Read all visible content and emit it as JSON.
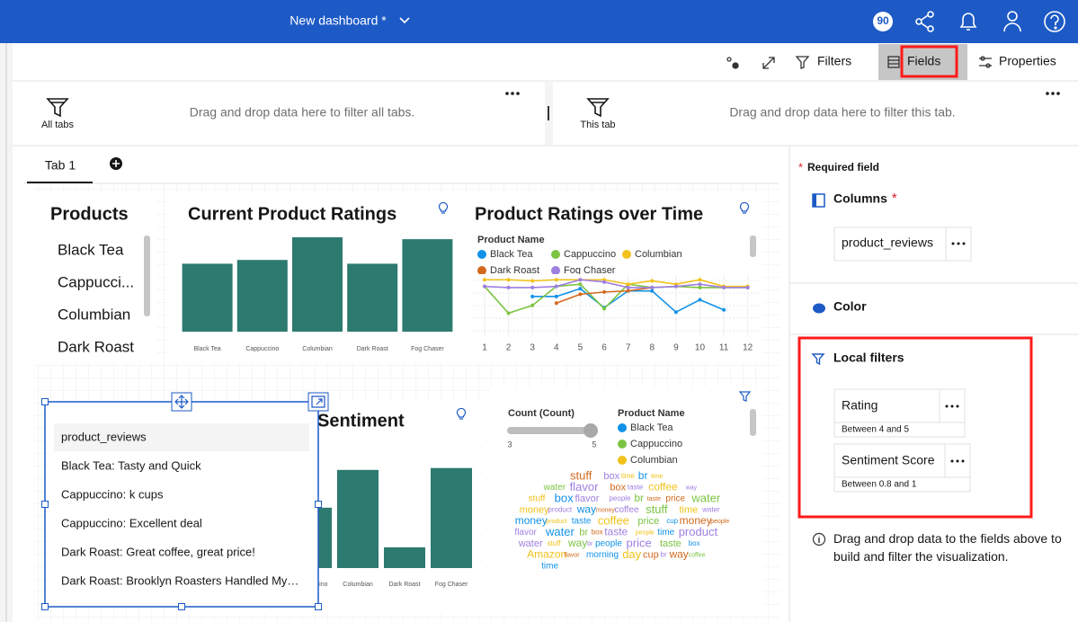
{
  "header": {
    "title": "New dashboard *",
    "badge": "90"
  },
  "toolbar": {
    "filters": "Filters",
    "fields": "Fields",
    "properties": "Properties"
  },
  "filter_bar": {
    "all_tabs": {
      "label": "All tabs",
      "hint": "Drag and drop data here to filter all tabs."
    },
    "this_tab": {
      "label": "This tab",
      "hint": "Drag and drop data here to filter this tab."
    }
  },
  "tabs": [
    "Tab 1"
  ],
  "widgets": {
    "products": {
      "title": "Products",
      "items": [
        "Black Tea",
        "Cappucci...",
        "Columbian",
        "Dark Roast"
      ]
    },
    "ratings": {
      "type": "bar",
      "title": "Current Product Ratings",
      "color": "#2d7a70",
      "categories": [
        "Black Tea",
        "Cappuccino",
        "Columbian",
        "Dark Roast",
        "Fog Chaser"
      ],
      "values": [
        3.6,
        3.8,
        5,
        3.6,
        4.9
      ]
    },
    "ratings_over_time": {
      "type": "line",
      "title": "Product Ratings over Time",
      "legend_title": "Product Name",
      "x": [
        1,
        2,
        3,
        4,
        5,
        6,
        7,
        8,
        9,
        10,
        11,
        12
      ],
      "xlim": [
        0.55,
        12.5
      ],
      "xticks": [
        1,
        2,
        3,
        4,
        5,
        6,
        7,
        8,
        9,
        10,
        11,
        12
      ],
      "series": [
        {
          "name": "Black Tea",
          "color": "#1192e8",
          "values": [
            null,
            null,
            3.4,
            3.4,
            4.1,
            2.4,
            3.9,
            3.9,
            2.0,
            3.1,
            2.2,
            null
          ]
        },
        {
          "name": "Cappuccino",
          "color": "#7cc442",
          "values": [
            4.3,
            1.9,
            2.6,
            4.3,
            4.5,
            2.3,
            4.5,
            4.2,
            4.3,
            4.2,
            4.2,
            4.2
          ]
        },
        {
          "name": "Columbian",
          "color": "#f1c21b",
          "values": [
            4.9,
            4.9,
            4.8,
            4.9,
            4.9,
            4.9,
            4.5,
            4.8,
            4.5,
            4.9,
            4.3,
            4.3
          ]
        },
        {
          "name": "Dark Roast",
          "color": "#d2691e",
          "values": [
            null,
            null,
            null,
            2.8,
            3.6,
            3.8,
            3.9,
            4.2,
            null,
            null,
            null,
            null
          ]
        },
        {
          "name": "Fog Chaser",
          "color": "#9f7fe0",
          "values": [
            4.3,
            4.2,
            4.2,
            4.3,
            4.9,
            4.7,
            4.2,
            4.2,
            4.3,
            4.5,
            4.2,
            4.2
          ]
        }
      ]
    },
    "reviews": {
      "header": "product_reviews",
      "items": [
        "Black Tea: Tasty and Quick",
        "Cappuccino: k cups",
        "Cappuccino: Excellent deal",
        "Dark Roast: Great coffee, great price!",
        "Dark Roast: Brooklyn Roasters Handled My…"
      ]
    },
    "sentiment": {
      "type": "bar",
      "title": "Sentiment",
      "color": "#2d7a70",
      "categories": [
        "Cappuccino",
        "Columbian",
        "Dark Roast",
        "Fog Chaser"
      ],
      "values": [
        3.2,
        5.2,
        1.1,
        5.3
      ]
    },
    "word_cloud": {
      "type": "word_cloud",
      "size_legend": {
        "title": "Count (Count)",
        "min": 3,
        "max": 5
      },
      "color_legend": {
        "title": "Product Name",
        "entries": [
          {
            "name": "Black Tea",
            "color": "#1192e8"
          },
          {
            "name": "Cappuccino",
            "color": "#7cc442"
          },
          {
            "name": "Columbian",
            "color": "#f1c21b"
          }
        ]
      },
      "words": [
        {
          "text": "stuff",
          "color": "#d2691e"
        },
        {
          "text": "box",
          "color": "#9f7fe0"
        },
        {
          "text": "time",
          "color": "#f1c21b"
        },
        {
          "text": "br",
          "color": "#1192e8"
        },
        {
          "text": "time",
          "color": "#f1c21b"
        },
        {
          "text": "water",
          "color": "#7cc442"
        },
        {
          "text": "flavor",
          "color": "#9f7fe0"
        },
        {
          "text": "box",
          "color": "#d2691e"
        },
        {
          "text": "taste",
          "color": "#9f7fe0"
        },
        {
          "text": "coffee",
          "color": "#f1c21b"
        },
        {
          "text": "way",
          "color": "#9f7fe0"
        },
        {
          "text": "stuff",
          "color": "#f1c21b"
        },
        {
          "text": "box",
          "color": "#1192e8"
        },
        {
          "text": "flavor",
          "color": "#9f7fe0"
        },
        {
          "text": "people",
          "color": "#9f7fe0"
        },
        {
          "text": "br",
          "color": "#7cc442"
        },
        {
          "text": "taste",
          "color": "#d2691e"
        },
        {
          "text": "price",
          "color": "#d2691e"
        },
        {
          "text": "water",
          "color": "#7cc442"
        },
        {
          "text": "money",
          "color": "#f1c21b"
        },
        {
          "text": "product",
          "color": "#9f7fe0"
        },
        {
          "text": "way",
          "color": "#1192e8"
        },
        {
          "text": "money",
          "color": "#d2691e"
        },
        {
          "text": "coffee",
          "color": "#9f7fe0"
        },
        {
          "text": "stuff",
          "color": "#7cc442"
        },
        {
          "text": "time",
          "color": "#f1c21b"
        },
        {
          "text": "water",
          "color": "#9f7fe0"
        },
        {
          "text": "money",
          "color": "#1192e8"
        },
        {
          "text": "product",
          "color": "#f1c21b"
        },
        {
          "text": "taste",
          "color": "#1192e8"
        },
        {
          "text": "coffee",
          "color": "#f1c21b"
        },
        {
          "text": "price",
          "color": "#7cc442"
        },
        {
          "text": "cup",
          "color": "#1192e8"
        },
        {
          "text": "money",
          "color": "#d2691e"
        },
        {
          "text": "people",
          "color": "#d2691e"
        },
        {
          "text": "flavor",
          "color": "#9f7fe0"
        },
        {
          "text": "water",
          "color": "#1192e8"
        },
        {
          "text": "br",
          "color": "#7cc442"
        },
        {
          "text": "box",
          "color": "#d2691e"
        },
        {
          "text": "taste",
          "color": "#9f7fe0"
        },
        {
          "text": "people",
          "color": "#f1c21b"
        },
        {
          "text": "time",
          "color": "#1192e8"
        },
        {
          "text": "product",
          "color": "#9f7fe0"
        },
        {
          "text": "water",
          "color": "#9f7fe0"
        },
        {
          "text": "stuff",
          "color": "#f1c21b"
        },
        {
          "text": "way",
          "color": "#7cc442"
        },
        {
          "text": "br",
          "color": "#9f7fe0"
        },
        {
          "text": "people",
          "color": "#1192e8"
        },
        {
          "text": "price",
          "color": "#9f7fe0"
        },
        {
          "text": "taste",
          "color": "#7cc442"
        },
        {
          "text": "box",
          "color": "#1192e8"
        },
        {
          "text": "Amazon",
          "color": "#f1c21b"
        },
        {
          "text": "flavor",
          "color": "#d2691e"
        },
        {
          "text": "morning",
          "color": "#1192e8"
        },
        {
          "text": "day",
          "color": "#f1c21b"
        },
        {
          "text": "cup",
          "color": "#d2691e"
        },
        {
          "text": "br",
          "color": "#9f7fe0"
        },
        {
          "text": "way",
          "color": "#d2691e"
        },
        {
          "text": "coffee",
          "color": "#7cc442"
        },
        {
          "text": "time",
          "color": "#1192e8"
        }
      ]
    }
  },
  "fields_panel": {
    "required_marker": "*",
    "required_note": "Required field",
    "columns": {
      "label": "Columns",
      "value": "product_reviews"
    },
    "color": {
      "label": "Color"
    },
    "local_filters": {
      "label": "Local filters",
      "items": [
        {
          "name": "Rating",
          "detail": "Between 4 and 5"
        },
        {
          "name": "Sentiment Score",
          "detail": "Between 0.8 and 1"
        }
      ]
    },
    "info": "Drag and drop data to the fields above to build and filter the visualization."
  }
}
